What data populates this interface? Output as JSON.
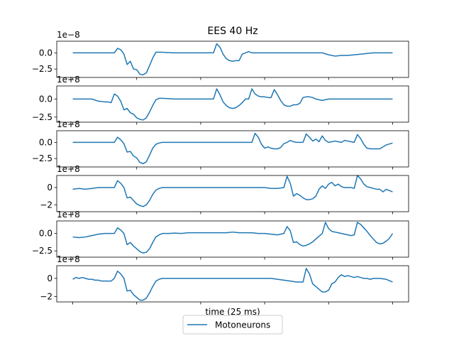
{
  "chart_data": {
    "type": "line",
    "title": "EES 40 Hz",
    "xlabel": "time (25 ms)",
    "legend": {
      "placement": "bottom-center",
      "entries": [
        "Motoneurons"
      ]
    },
    "series_color": "#1f77b4",
    "grid": false,
    "panels": [
      {
        "offset_label": "1e−8",
        "ylim": [
          -3.8,
          1.8
        ],
        "yticks": [
          0,
          -2.5
        ],
        "ytick_labels": [
          "0.0",
          "−2.5"
        ],
        "x": [
          0,
          13,
          14,
          15,
          16,
          17,
          18,
          19,
          20,
          21,
          22,
          23,
          24,
          25,
          26,
          27,
          28,
          29,
          30,
          31,
          32,
          33,
          34,
          35,
          36,
          37,
          38,
          39,
          40,
          41,
          42,
          43,
          44,
          45,
          46,
          47,
          48,
          49,
          50,
          51,
          52,
          53,
          54,
          55,
          56,
          58,
          60,
          62,
          64,
          66,
          68,
          70,
          72,
          74,
          76,
          78,
          80,
          82,
          84,
          86,
          88,
          90,
          92,
          94,
          96,
          97,
          98,
          99,
          100
        ],
        "y": [
          0.0,
          0.0,
          0.7,
          0.5,
          -0.2,
          -1.8,
          -1.3,
          -2.5,
          -2.6,
          -3.3,
          -3.4,
          -3.1,
          -2.0,
          -0.8,
          0.1,
          0.1,
          0.1,
          0.05,
          0.05,
          0.0,
          0.0,
          0.0,
          0.0,
          0.0,
          0.0,
          0.0,
          0.0,
          0.0,
          0.0,
          0.0,
          0.0,
          0.0,
          0.0,
          1.4,
          0.9,
          -0.2,
          -0.9,
          -1.2,
          -1.3,
          -1.2,
          -1.2,
          -0.2,
          0.0,
          0.2,
          0.0,
          0.0,
          0.0,
          0.0,
          0.0,
          0.0,
          0.0,
          0.0,
          0.0,
          0.0,
          0.0,
          0.0,
          -0.3,
          -0.5,
          -0.4,
          -0.4,
          -0.3,
          -0.2,
          -0.1,
          0.0,
          0.0,
          0.0,
          0.0,
          0.0,
          0.0
        ]
      },
      {
        "offset_label": "1e+8",
        "ylim": [
          -3.2,
          1.8
        ],
        "yticks": [
          0,
          -2.5
        ],
        "ytick_labels": [
          "0.0",
          "−2.5"
        ],
        "x": [
          0,
          2,
          4,
          6,
          8,
          10,
          11,
          12,
          13,
          14,
          15,
          16,
          17,
          18,
          19,
          20,
          21,
          22,
          23,
          24,
          25,
          26,
          27,
          28,
          30,
          32,
          34,
          36,
          38,
          40,
          42,
          44,
          45,
          46,
          47,
          48,
          49,
          50,
          51,
          52,
          53,
          54,
          55,
          56,
          57,
          58,
          59,
          60,
          61,
          62,
          63,
          64,
          65,
          66,
          67,
          68,
          69,
          70,
          71,
          72,
          73,
          74,
          75,
          76,
          77,
          78,
          80,
          82,
          84,
          86,
          88,
          90,
          92,
          94,
          96,
          98,
          100
        ],
        "y": [
          0.0,
          0.0,
          0.0,
          0.0,
          -0.3,
          -0.4,
          -0.4,
          -0.5,
          0.7,
          0.4,
          -0.3,
          -1.5,
          -1.3,
          -1.9,
          -2.1,
          -2.6,
          -2.8,
          -2.9,
          -2.6,
          -1.8,
          -0.9,
          -0.1,
          0.1,
          0.1,
          0.05,
          0.0,
          0.0,
          0.0,
          0.0,
          0.0,
          0.0,
          0.0,
          1.4,
          0.6,
          -0.4,
          -0.9,
          -1.2,
          -1.3,
          -1.2,
          -0.9,
          -0.5,
          0.0,
          0.0,
          1.4,
          0.7,
          0.4,
          0.3,
          0.3,
          0.2,
          0.2,
          1.3,
          0.6,
          -0.2,
          -0.8,
          -1.0,
          -1.0,
          -0.8,
          -0.8,
          -0.6,
          0.2,
          0.3,
          0.3,
          0.2,
          0.0,
          -0.1,
          -0.2,
          0.0,
          0.0,
          0.0,
          0.0,
          0.0,
          0.0,
          0.0,
          0.0,
          0.0,
          0.0,
          0.0
        ]
      },
      {
        "offset_label": "1e+8",
        "ylim": [
          -3.8,
          1.8
        ],
        "yticks": [
          0,
          -2.5
        ],
        "ytick_labels": [
          "0.0",
          "−2.5"
        ],
        "x": [
          0,
          13,
          14,
          15,
          16,
          17,
          18,
          19,
          20,
          21,
          22,
          23,
          24,
          25,
          26,
          27,
          28,
          30,
          32,
          34,
          36,
          38,
          40,
          42,
          44,
          46,
          48,
          50,
          52,
          54,
          56,
          57,
          58,
          59,
          60,
          61,
          62,
          63,
          64,
          65,
          66,
          67,
          68,
          69,
          70,
          71,
          72,
          73,
          74,
          75,
          76,
          77,
          78,
          79,
          80,
          81,
          82,
          83,
          84,
          85,
          86,
          87,
          88,
          89,
          90,
          91,
          92,
          93,
          94,
          96,
          98,
          100
        ],
        "y": [
          0.0,
          0.0,
          0.8,
          0.4,
          -0.2,
          -1.5,
          -1.4,
          -2.1,
          -2.4,
          -3.1,
          -3.3,
          -3.0,
          -2.0,
          -0.9,
          -0.3,
          -0.1,
          0.0,
          0.0,
          0.0,
          0.0,
          0.0,
          0.0,
          0.0,
          0.0,
          0.0,
          0.0,
          0.0,
          0.0,
          0.0,
          0.0,
          0.0,
          1.4,
          0.8,
          -0.3,
          -0.9,
          -0.7,
          -0.9,
          -1.0,
          -1.0,
          -0.8,
          -0.2,
          0.0,
          0.3,
          0.1,
          0.0,
          0.0,
          0.0,
          1.3,
          0.8,
          0.2,
          0.5,
          0.1,
          1.0,
          0.3,
          0.0,
          0.1,
          0.2,
          0.1,
          0.0,
          0.3,
          0.2,
          0.1,
          0.0,
          1.2,
          0.6,
          -0.3,
          -0.9,
          -1.0,
          -1.0,
          -1.0,
          -0.4,
          -0.1
        ]
      },
      {
        "offset_label": "1e+8",
        "ylim": [
          -2.8,
          1.4
        ],
        "yticks": [
          0,
          -2
        ],
        "ytick_labels": [
          "0",
          "−2"
        ],
        "x": [
          0,
          2,
          4,
          6,
          8,
          10,
          12,
          13,
          14,
          15,
          16,
          17,
          18,
          19,
          20,
          21,
          22,
          23,
          24,
          25,
          26,
          27,
          28,
          30,
          32,
          34,
          36,
          38,
          40,
          42,
          44,
          46,
          48,
          50,
          52,
          54,
          56,
          58,
          60,
          62,
          64,
          66,
          67,
          68,
          69,
          70,
          71,
          72,
          73,
          74,
          75,
          76,
          77,
          78,
          79,
          80,
          81,
          82,
          83,
          84,
          85,
          86,
          87,
          88,
          89,
          90,
          91,
          92,
          93,
          94,
          95,
          96,
          97,
          98,
          100
        ],
        "y": [
          -0.2,
          -0.1,
          -0.2,
          -0.1,
          0.0,
          0.0,
          0.0,
          0.0,
          0.8,
          0.5,
          0.0,
          -1.2,
          -1.1,
          -1.5,
          -1.9,
          -2.1,
          -2.2,
          -2.0,
          -1.5,
          -0.8,
          -0.3,
          -0.1,
          0.0,
          0.0,
          0.0,
          0.0,
          0.0,
          0.0,
          0.0,
          0.0,
          0.0,
          0.0,
          0.0,
          0.0,
          0.0,
          0.0,
          0.0,
          0.0,
          0.0,
          -0.1,
          -0.1,
          0.0,
          1.3,
          0.5,
          -1.0,
          -0.7,
          -0.9,
          -1.2,
          -1.4,
          -1.4,
          -1.3,
          -1.0,
          -0.2,
          0.2,
          -0.1,
          0.4,
          0.6,
          0.2,
          0.4,
          0.1,
          0.0,
          0.0,
          0.0,
          -0.1,
          1.4,
          1.0,
          0.4,
          0.1,
          0.0,
          -0.1,
          -0.2,
          -0.2,
          -0.5,
          -0.2,
          -0.5
        ]
      },
      {
        "offset_label": "1e+8",
        "ylim": [
          -3.4,
          1.8
        ],
        "yticks": [
          0,
          -2.5
        ],
        "ytick_labels": [
          "0.0",
          "−2.5"
        ],
        "x": [
          0,
          2,
          4,
          6,
          8,
          10,
          12,
          13,
          14,
          15,
          16,
          17,
          18,
          19,
          20,
          21,
          22,
          23,
          24,
          25,
          26,
          27,
          28,
          30,
          32,
          34,
          36,
          38,
          40,
          42,
          44,
          46,
          48,
          50,
          52,
          54,
          56,
          58,
          60,
          62,
          64,
          66,
          67,
          68,
          69,
          70,
          71,
          72,
          73,
          74,
          75,
          76,
          77,
          78,
          79,
          80,
          81,
          82,
          83,
          84,
          85,
          86,
          87,
          88,
          89,
          90,
          91,
          92,
          93,
          94,
          95,
          96,
          97,
          98,
          99,
          100
        ],
        "y": [
          -0.5,
          -0.6,
          -0.5,
          -0.3,
          -0.1,
          0.0,
          0.0,
          0.0,
          0.8,
          0.5,
          0.0,
          -1.6,
          -1.3,
          -1.8,
          -2.2,
          -2.6,
          -2.8,
          -2.7,
          -2.2,
          -1.3,
          -0.5,
          -0.2,
          0.0,
          0.0,
          0.05,
          0.0,
          0.1,
          0.1,
          0.1,
          0.1,
          0.1,
          0.1,
          0.1,
          0.2,
          0.1,
          0.1,
          0.1,
          0.0,
          0.0,
          -0.1,
          -0.2,
          0.0,
          1.0,
          0.4,
          -1.3,
          -1.2,
          -1.6,
          -1.8,
          -1.7,
          -1.5,
          -1.2,
          -0.8,
          -0.4,
          0.0,
          1.6,
          0.7,
          0.3,
          0.2,
          0.1,
          0.0,
          -0.1,
          -0.2,
          -0.3,
          -0.2,
          1.6,
          1.3,
          0.8,
          0.3,
          -0.3,
          -0.8,
          -1.3,
          -1.5,
          -1.4,
          -1.1,
          -0.7,
          0.0
        ]
      },
      {
        "offset_label": "1e+8",
        "ylim": [
          -2.6,
          1.4
        ],
        "yticks": [
          0,
          -2
        ],
        "ytick_labels": [
          "0",
          "−2"
        ],
        "x": [
          0,
          1,
          2,
          3,
          4,
          5,
          6,
          7,
          8,
          9,
          10,
          11,
          12,
          13,
          14,
          15,
          16,
          17,
          18,
          19,
          20,
          21,
          22,
          23,
          24,
          25,
          26,
          27,
          28,
          30,
          32,
          34,
          36,
          38,
          40,
          42,
          44,
          46,
          48,
          50,
          52,
          54,
          56,
          58,
          60,
          62,
          64,
          66,
          68,
          70,
          72,
          73,
          74,
          75,
          76,
          77,
          78,
          79,
          80,
          81,
          82,
          83,
          84,
          85,
          86,
          87,
          88,
          89,
          90,
          91,
          92,
          93,
          94,
          96,
          98,
          100
        ],
        "y": [
          -0.1,
          0.1,
          0.0,
          0.1,
          0.0,
          -0.1,
          -0.1,
          -0.2,
          -0.2,
          -0.3,
          -0.3,
          -0.3,
          -0.3,
          0.0,
          0.8,
          0.5,
          0.0,
          -1.4,
          -1.3,
          -1.8,
          -2.1,
          -2.4,
          -2.4,
          -2.2,
          -1.6,
          -0.9,
          -0.3,
          -0.1,
          0.0,
          0.0,
          0.0,
          0.0,
          0.0,
          0.0,
          0.0,
          0.0,
          0.0,
          0.0,
          0.0,
          0.0,
          0.0,
          0.0,
          0.0,
          0.0,
          0.0,
          0.0,
          -0.1,
          -0.2,
          -0.3,
          -0.4,
          -0.4,
          1.1,
          0.5,
          -0.6,
          -0.9,
          -1.2,
          -1.5,
          -1.5,
          -1.3,
          -0.6,
          -0.4,
          0.1,
          0.4,
          0.2,
          0.3,
          0.2,
          0.1,
          0.2,
          0.1,
          0.0,
          0.0,
          -0.1,
          0.0,
          0.0,
          -0.1,
          -0.4
        ]
      }
    ]
  },
  "legend_label": "Motoneurons"
}
